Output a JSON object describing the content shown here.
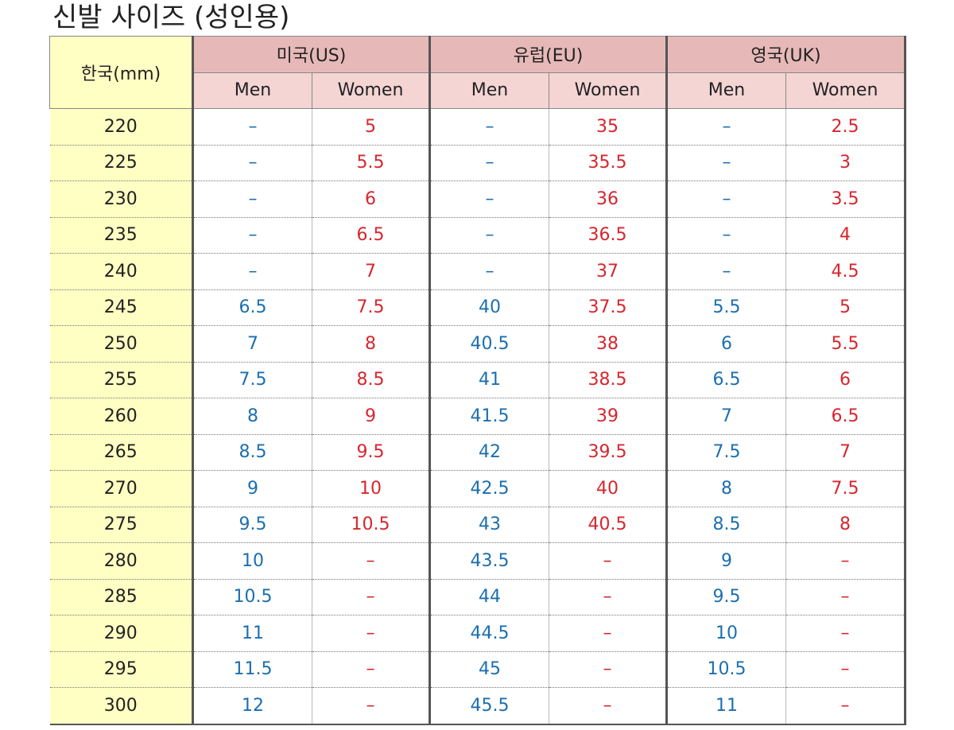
{
  "header": {
    "title": "신발 사이즈 (성인용)"
  },
  "table": {
    "corner": "한국(mm)",
    "groups": [
      "미국(US)",
      "유럽(EU)",
      "영국(UK)"
    ],
    "subheaders": [
      "Men",
      "Women",
      "Men",
      "Women",
      "Men",
      "Women"
    ],
    "rows": [
      [
        "220",
        "–",
        "5",
        "–",
        "35",
        "–",
        "2.5"
      ],
      [
        "225",
        "–",
        "5.5",
        "–",
        "35.5",
        "–",
        "3"
      ],
      [
        "230",
        "–",
        "6",
        "–",
        "36",
        "–",
        "3.5"
      ],
      [
        "235",
        "–",
        "6.5",
        "–",
        "36.5",
        "–",
        "4"
      ],
      [
        "240",
        "–",
        "7",
        "–",
        "37",
        "–",
        "4.5"
      ],
      [
        "245",
        "6.5",
        "7.5",
        "40",
        "37.5",
        "5.5",
        "5"
      ],
      [
        "250",
        "7",
        "8",
        "40.5",
        "38",
        "6",
        "5.5"
      ],
      [
        "255",
        "7.5",
        "8.5",
        "41",
        "38.5",
        "6.5",
        "6"
      ],
      [
        "260",
        "8",
        "9",
        "41.5",
        "39",
        "7",
        "6.5"
      ],
      [
        "265",
        "8.5",
        "9.5",
        "42",
        "39.5",
        "7.5",
        "7"
      ],
      [
        "270",
        "9",
        "10",
        "42.5",
        "40",
        "8",
        "7.5"
      ],
      [
        "275",
        "9.5",
        "10.5",
        "43",
        "40.5",
        "8.5",
        "8"
      ],
      [
        "280",
        "10",
        "–",
        "43.5",
        "–",
        "9",
        "–"
      ],
      [
        "285",
        "10.5",
        "–",
        "44",
        "–",
        "9.5",
        "–"
      ],
      [
        "290",
        "11",
        "–",
        "44.5",
        "–",
        "10",
        "–"
      ],
      [
        "295",
        "11.5",
        "–",
        "45",
        "–",
        "10.5",
        "–"
      ],
      [
        "300",
        "12",
        "–",
        "45.5",
        "–",
        "11",
        "–"
      ]
    ]
  }
}
